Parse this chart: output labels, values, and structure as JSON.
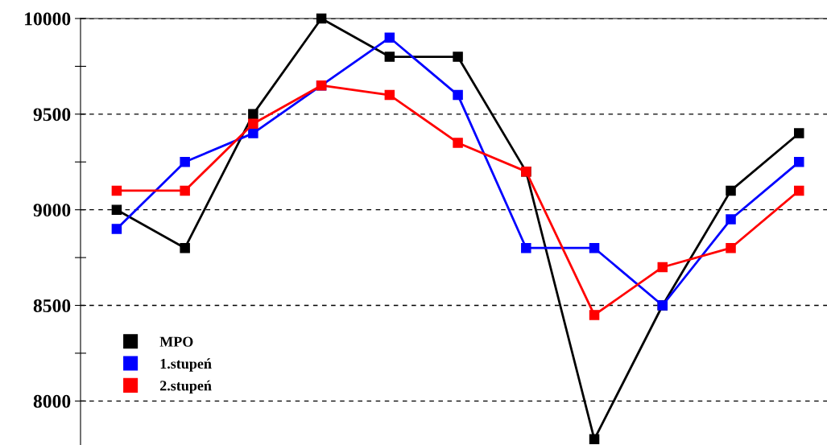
{
  "chart_data": {
    "type": "line",
    "categories": [
      null,
      null,
      null,
      null,
      null,
      null,
      null,
      null,
      null,
      null,
      null
    ],
    "series": [
      {
        "name": "MPO",
        "color": "#000000",
        "values": [
          9000,
          8800,
          9500,
          10000,
          9800,
          9800,
          9200,
          7800,
          8500,
          9100,
          9400
        ]
      },
      {
        "name": "1.stupeń",
        "color": "#0000ff",
        "values": [
          8900,
          9250,
          9400,
          9650,
          9900,
          9600,
          8800,
          8800,
          8500,
          8950,
          9250
        ]
      },
      {
        "name": "2.stupeń",
        "color": "#ff0000",
        "values": [
          9100,
          9100,
          9450,
          9650,
          9600,
          9350,
          9200,
          8450,
          8700,
          8800,
          9100
        ]
      }
    ],
    "ylim": [
      7770,
      10000
    ],
    "yticks": [
      8000,
      {
        "value": 8250,
        "label": null
      },
      8500,
      {
        "value": 8750,
        "label": null
      },
      9000,
      {
        "value": 9250,
        "label": null
      },
      9500,
      {
        "value": 9750,
        "label": null
      },
      10000
    ],
    "grid": "y",
    "legend": "bottom left",
    "marker": "square",
    "line_style": "solid",
    "tick_labels": "y"
  }
}
